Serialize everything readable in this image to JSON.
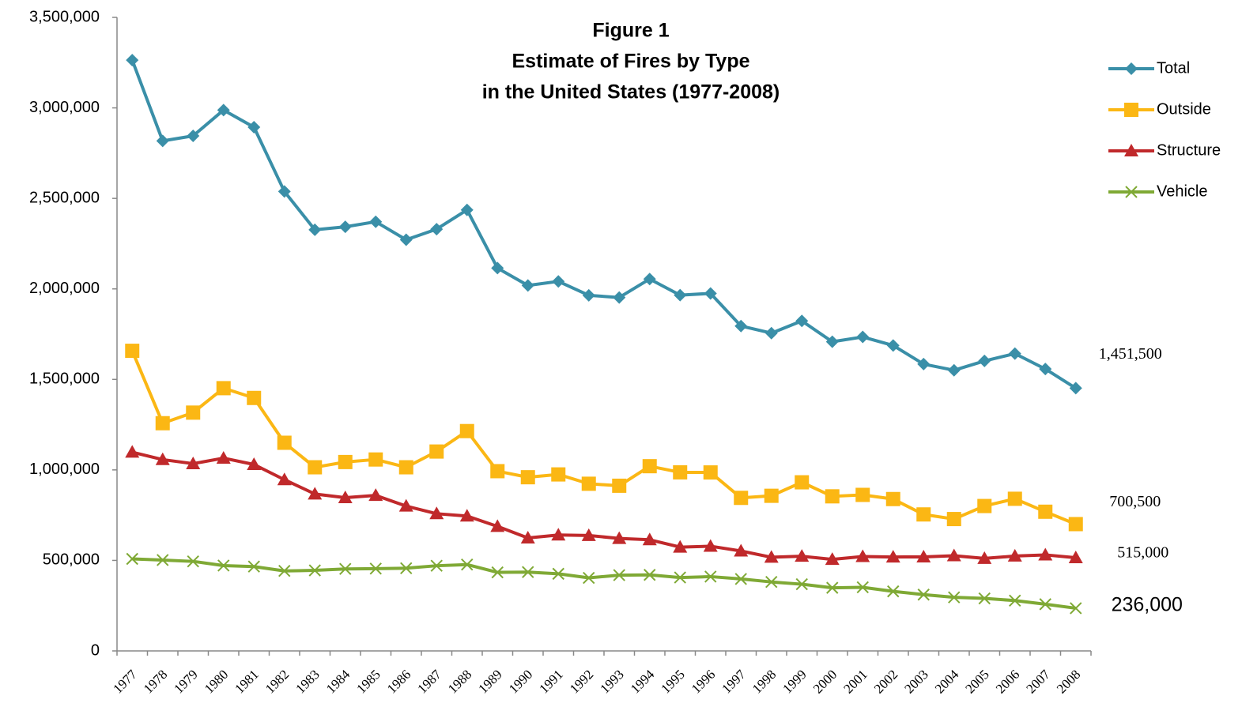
{
  "chart_data": {
    "type": "line",
    "title": [
      "Figure 1",
      "Estimate of Fires by Type",
      "in the United States (1977-2008)"
    ],
    "categories": [
      "1977",
      "1978",
      "1979",
      "1980",
      "1981",
      "1982",
      "1983",
      "1984",
      "1985",
      "1986",
      "1987",
      "1988",
      "1989",
      "1990",
      "1991",
      "1992",
      "1993",
      "1994",
      "1995",
      "1996",
      "1997",
      "1998",
      "1999",
      "2000",
      "2001",
      "2002",
      "2003",
      "2004",
      "2005",
      "2006",
      "2007",
      "2008"
    ],
    "series": [
      {
        "name": "Total",
        "color": "#3a8fa8",
        "marker": "diamond",
        "values": [
          3264000,
          2817500,
          2845500,
          2988000,
          2893500,
          2538000,
          2326500,
          2343000,
          2371000,
          2271500,
          2330000,
          2436500,
          2115000,
          2019000,
          2041500,
          1964500,
          1952500,
          2054500,
          1965500,
          1975000,
          1795000,
          1755500,
          1823000,
          1708000,
          1734500,
          1687500,
          1584500,
          1550500,
          1602000,
          1642500,
          1557500,
          1451500
        ],
        "value_labels": [
          null,
          null,
          null,
          null,
          null,
          null,
          null,
          null,
          null,
          null,
          null,
          null,
          null,
          null,
          null,
          null,
          null,
          null,
          null,
          null,
          null,
          null,
          null,
          null,
          null,
          null,
          null,
          null,
          null,
          null,
          null,
          "1,451,500"
        ]
      },
      {
        "name": "Outside",
        "color": "#fbb714",
        "marker": "square",
        "values": [
          1658000,
          1258000,
          1316500,
          1451500,
          1397500,
          1150000,
          1014500,
          1043500,
          1057500,
          1014500,
          1101500,
          1214500,
          993000,
          959500,
          975000,
          923500,
          912500,
          1020500,
          986500,
          986000,
          845500,
          857000,
          931500,
          854000,
          862000,
          839000,
          754000,
          728500,
          800500,
          840500,
          769000,
          700500
        ],
        "value_labels": [
          null,
          null,
          null,
          null,
          null,
          null,
          null,
          null,
          null,
          null,
          null,
          null,
          null,
          null,
          null,
          null,
          null,
          null,
          null,
          null,
          null,
          null,
          null,
          null,
          null,
          null,
          null,
          null,
          null,
          null,
          null,
          "700,500"
        ]
      },
      {
        "name": "Structure",
        "color": "#c0292b",
        "marker": "triangle",
        "values": [
          1098000,
          1057000,
          1034500,
          1065000,
          1030000,
          946000,
          867000,
          846500,
          859000,
          800000,
          758000,
          745000,
          688000,
          624000,
          640500,
          637500,
          621500,
          614000,
          573500,
          578500,
          552000,
          517500,
          523000,
          505500,
          521500,
          519000,
          519500,
          526000,
          511000,
          524000,
          530500,
          515000
        ],
        "value_labels": [
          null,
          null,
          null,
          null,
          null,
          null,
          null,
          null,
          null,
          null,
          null,
          null,
          null,
          null,
          null,
          null,
          null,
          null,
          null,
          null,
          null,
          null,
          null,
          null,
          null,
          null,
          null,
          null,
          null,
          null,
          null,
          "515,000"
        ]
      },
      {
        "name": "Vehicle",
        "color": "#7fa935",
        "marker": "x",
        "values": [
          508500,
          502000,
          494500,
          471500,
          466000,
          442000,
          445000,
          453000,
          454500,
          457000,
          470500,
          477000,
          434000,
          435500,
          426000,
          403500,
          418500,
          420000,
          405500,
          410500,
          397500,
          381000,
          368500,
          348500,
          351500,
          329000,
          311000,
          296000,
          290000,
          278000,
          258000,
          236000
        ],
        "value_labels": [
          null,
          null,
          null,
          null,
          null,
          null,
          null,
          null,
          null,
          null,
          null,
          null,
          null,
          null,
          null,
          null,
          null,
          null,
          null,
          null,
          null,
          null,
          null,
          null,
          null,
          null,
          null,
          null,
          null,
          null,
          null,
          "236,000"
        ]
      }
    ],
    "ylim": [
      0,
      3500000
    ],
    "yticks": [
      0,
      {
        "value": 500000,
        "label": "500,000"
      },
      {
        "value": 1000000,
        "label": "1,000,000"
      },
      {
        "value": 1500000,
        "label": "1,500,000"
      },
      {
        "value": 2000000,
        "label": "2,000,000"
      },
      {
        "value": 2500000,
        "label": "2,500,000"
      },
      {
        "value": 3000000,
        "label": "3,000,000"
      },
      {
        "value": 3500000,
        "label": "3,500,000"
      }
    ],
    "grid": false,
    "legend": "right"
  }
}
